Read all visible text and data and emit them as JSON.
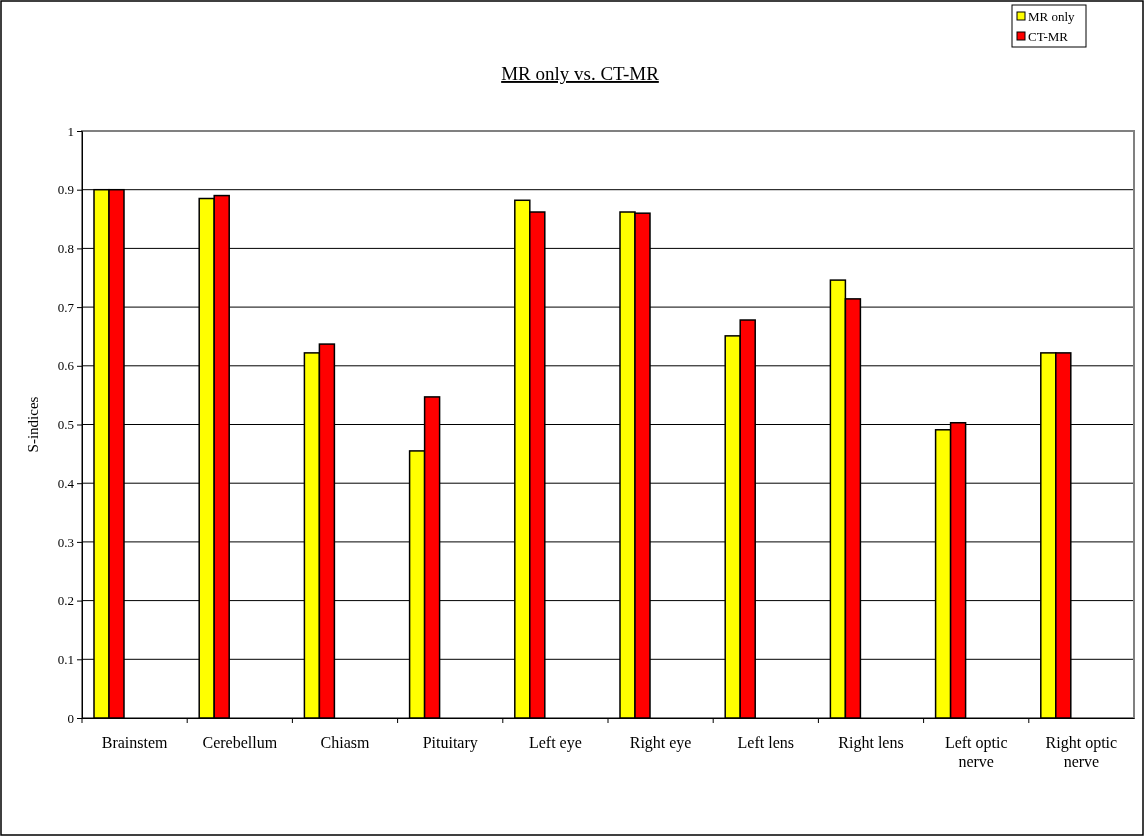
{
  "chart_data": {
    "type": "bar",
    "title": "MR only vs. CT-MR",
    "ylabel": "S-indices",
    "categories": [
      "Brainstem",
      "Cerebellum",
      "Chiasm",
      "Pituitary",
      "Left eye",
      "Right eye",
      "Left lens",
      "Right lens",
      "Left optic nerve",
      "Right optic nerve"
    ],
    "series": [
      {
        "name": "MR only",
        "color": "#ffff00",
        "values": [
          0.9,
          0.885,
          0.622,
          0.455,
          0.882,
          0.862,
          0.651,
          0.746,
          0.491,
          0.622
        ]
      },
      {
        "name": "CT-MR",
        "color": "#ff0000",
        "values": [
          0.9,
          0.89,
          0.637,
          0.547,
          0.862,
          0.86,
          0.678,
          0.714,
          0.503,
          0.622
        ]
      }
    ],
    "ylim": [
      0,
      1
    ],
    "yticks": [
      0,
      0.1,
      0.2,
      0.3,
      0.4,
      0.5,
      0.6,
      0.7,
      0.8,
      0.9,
      1
    ],
    "grid": "y",
    "legend": "top right"
  }
}
